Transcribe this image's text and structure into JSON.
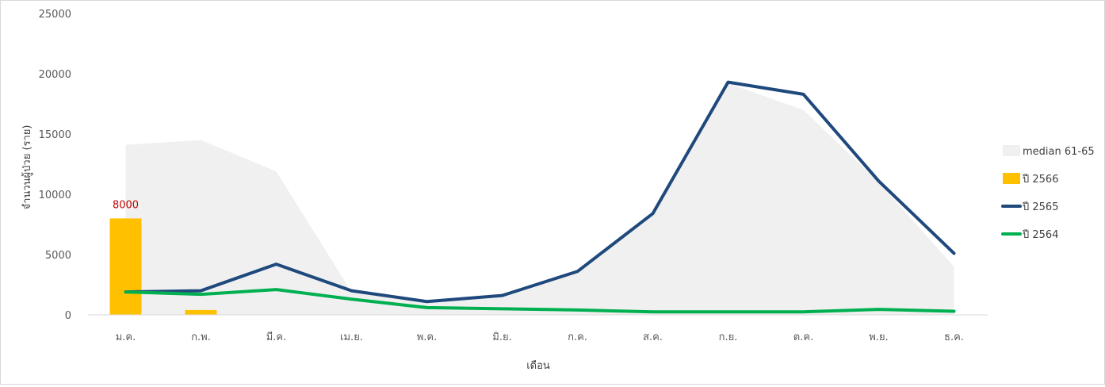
{
  "chart_data": {
    "type": "combo",
    "title": "",
    "xlabel": "เดือน",
    "ylabel": "จำนวนผู้ป่วย (ราย)",
    "ylim": [
      0,
      25000
    ],
    "yticks": [
      0,
      5000,
      10000,
      15000,
      20000,
      25000
    ],
    "grid": false,
    "legend_position": "right",
    "categories": [
      "ม.ค.",
      "ก.พ.",
      "มี.ค.",
      "เม.ย.",
      "พ.ค.",
      "มิ.ย.",
      "ก.ค.",
      "ส.ค.",
      "ก.ย.",
      "ต.ค.",
      "พ.ย.",
      "ธ.ค."
    ],
    "series": [
      {
        "name": "median 61-65",
        "kind": "area",
        "color": "#f0f0f0",
        "values": [
          14100,
          14500,
          11900,
          1900,
          1100,
          1500,
          3500,
          8300,
          19200,
          17000,
          11000,
          4000
        ]
      },
      {
        "name": "ปี 2566",
        "kind": "bar",
        "color": "#ffc000",
        "values": [
          8000,
          400,
          null,
          null,
          null,
          null,
          null,
          null,
          null,
          null,
          null,
          null
        ]
      },
      {
        "name": "ปี 2565",
        "kind": "line",
        "color": "#1f497d",
        "values": [
          1900,
          2000,
          4200,
          2000,
          1100,
          1600,
          3600,
          8400,
          19300,
          18300,
          11100,
          5100
        ]
      },
      {
        "name": "ปี 2564",
        "kind": "line",
        "color": "#00b050",
        "values": [
          1900,
          1700,
          2100,
          1300,
          600,
          500,
          400,
          250,
          250,
          250,
          450,
          300
        ]
      }
    ],
    "data_labels": [
      {
        "series": "ปี 2566",
        "category": "ม.ค.",
        "text": "8000"
      }
    ]
  }
}
